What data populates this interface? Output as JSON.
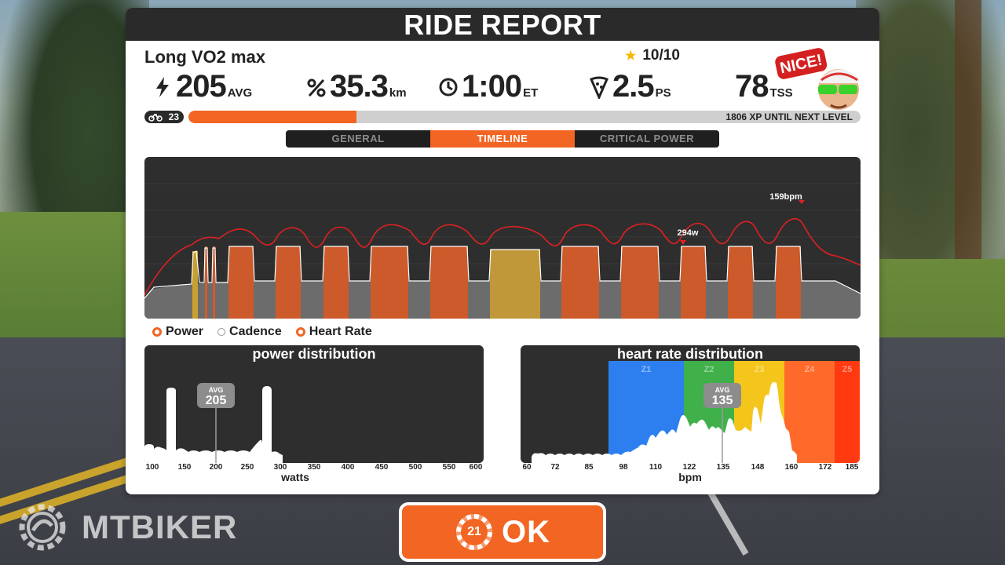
{
  "header": {
    "title": "RIDE REPORT"
  },
  "workout": {
    "name": "Long VO2 max",
    "rating": "10/10"
  },
  "stats": [
    {
      "icon": "lightning-icon",
      "value": "205",
      "unit": "AVG"
    },
    {
      "icon": "distance-icon",
      "value": "35.3",
      "unit": "km"
    },
    {
      "icon": "clock-icon",
      "value": "1:00",
      "unit": "ET"
    },
    {
      "icon": "pizza-icon",
      "value": "2.5",
      "unit": "PS"
    },
    {
      "icon": "tss-icon",
      "value": "78",
      "unit": "TSS"
    }
  ],
  "avatar": {
    "badge": "NICE!"
  },
  "xp": {
    "level": "23",
    "progress": 0.25,
    "text": "1806 XP UNTIL NEXT LEVEL"
  },
  "tabs": [
    {
      "label": "GENERAL",
      "active": false
    },
    {
      "label": "TIMELINE",
      "active": true
    },
    {
      "label": "CRITICAL POWER",
      "active": false
    }
  ],
  "timeline": {
    "hr_peak_label": "159bpm",
    "power_peak_label": "294w"
  },
  "legend": {
    "power": "Power",
    "cadence": "Cadence",
    "heart_rate": "Heart Rate"
  },
  "power_distribution": {
    "title": "power distribution",
    "avg_label": "AVG",
    "avg_value": "205",
    "axis_label": "watts",
    "ticks": [
      "100",
      "150",
      "200",
      "250",
      "300",
      "350",
      "400",
      "450",
      "500",
      "550",
      "600"
    ]
  },
  "hr_distribution": {
    "title": "heart rate distribution",
    "avg_label": "AVG",
    "avg_value": "135",
    "axis_label": "bpm",
    "ticks": [
      "60",
      "72",
      "85",
      "98",
      "110",
      "122",
      "135",
      "148",
      "160",
      "172",
      "185"
    ],
    "zones": [
      {
        "label": "Z1",
        "color": "#2d7ff0"
      },
      {
        "label": "Z2",
        "color": "#3fb04a"
      },
      {
        "label": "Z3",
        "color": "#f4c51b"
      },
      {
        "label": "Z4",
        "color": "#ff6a2a"
      },
      {
        "label": "Z5",
        "color": "#ff3a10"
      }
    ]
  },
  "ok_button": {
    "countdown": "21",
    "label": "OK"
  },
  "watermark": {
    "text": "MTBIKER"
  },
  "colors": {
    "accent": "#f26522",
    "dark": "#2a2a2a"
  }
}
